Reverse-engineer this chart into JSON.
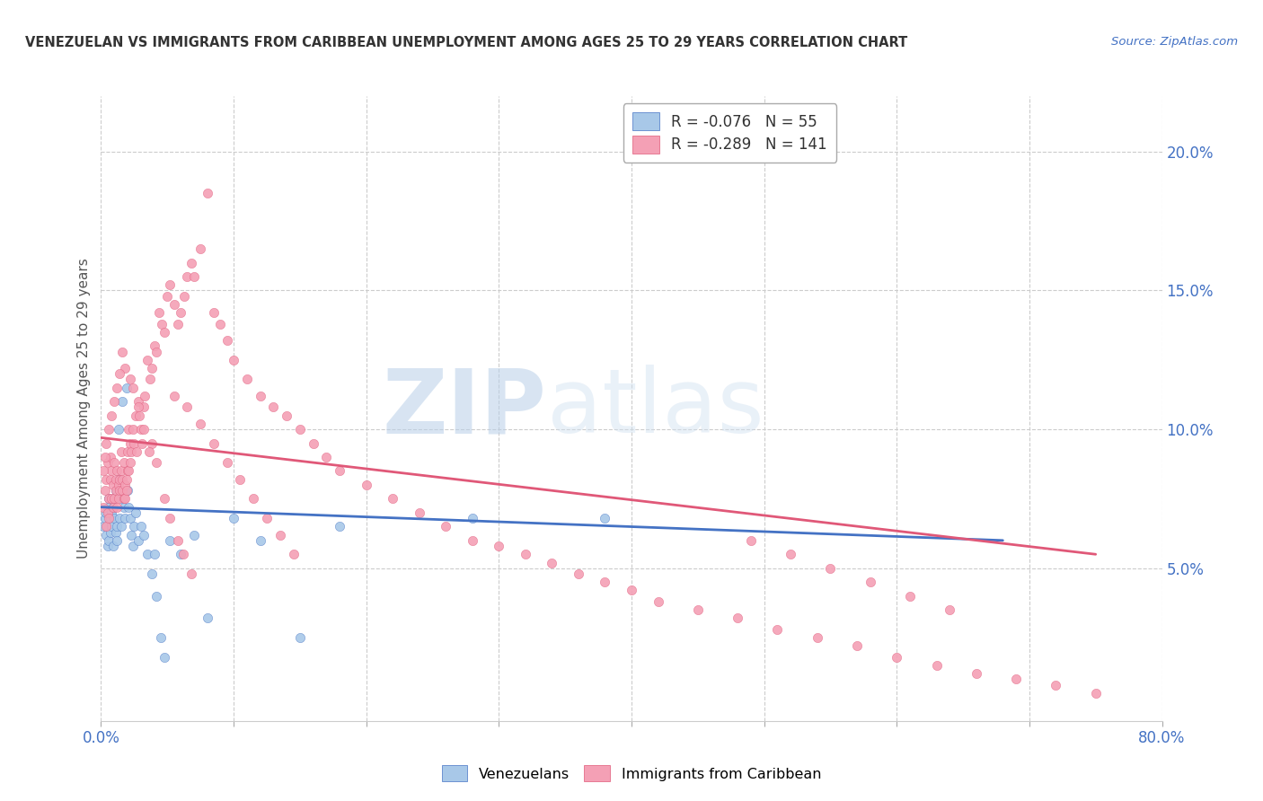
{
  "title": "VENEZUELAN VS IMMIGRANTS FROM CARIBBEAN UNEMPLOYMENT AMONG AGES 25 TO 29 YEARS CORRELATION CHART",
  "source": "Source: ZipAtlas.com",
  "ylabel": "Unemployment Among Ages 25 to 29 years",
  "ylabel_right_ticks": [
    "20.0%",
    "15.0%",
    "10.0%",
    "5.0%"
  ],
  "ylabel_right_vals": [
    0.2,
    0.15,
    0.1,
    0.05
  ],
  "venezuelan_color": "#a8c8e8",
  "caribbean_color": "#f4a0b5",
  "venezuelan_line_color": "#4472C4",
  "caribbean_line_color": "#e05878",
  "watermark_zip": "ZIP",
  "watermark_atlas": "atlas",
  "xmin": 0.0,
  "xmax": 0.8,
  "ymin": -0.005,
  "ymax": 0.22,
  "venezuelan_scatter_x": [
    0.002,
    0.003,
    0.004,
    0.004,
    0.005,
    0.005,
    0.006,
    0.006,
    0.007,
    0.007,
    0.008,
    0.008,
    0.009,
    0.009,
    0.01,
    0.01,
    0.011,
    0.011,
    0.012,
    0.012,
    0.013,
    0.013,
    0.014,
    0.015,
    0.015,
    0.016,
    0.017,
    0.018,
    0.019,
    0.02,
    0.021,
    0.022,
    0.023,
    0.024,
    0.025,
    0.026,
    0.028,
    0.03,
    0.032,
    0.035,
    0.038,
    0.04,
    0.042,
    0.045,
    0.048,
    0.052,
    0.06,
    0.07,
    0.08,
    0.1,
    0.12,
    0.15,
    0.18,
    0.28,
    0.38
  ],
  "venezuelan_scatter_y": [
    0.065,
    0.068,
    0.062,
    0.07,
    0.058,
    0.072,
    0.06,
    0.075,
    0.063,
    0.068,
    0.07,
    0.065,
    0.072,
    0.058,
    0.068,
    0.075,
    0.063,
    0.078,
    0.065,
    0.06,
    0.082,
    0.1,
    0.068,
    0.075,
    0.065,
    0.11,
    0.072,
    0.068,
    0.115,
    0.078,
    0.072,
    0.068,
    0.062,
    0.058,
    0.065,
    0.07,
    0.06,
    0.065,
    0.062,
    0.055,
    0.048,
    0.055,
    0.04,
    0.025,
    0.018,
    0.06,
    0.055,
    0.062,
    0.032,
    0.068,
    0.06,
    0.025,
    0.065,
    0.068,
    0.068
  ],
  "caribbean_scatter_x": [
    0.002,
    0.003,
    0.004,
    0.004,
    0.005,
    0.005,
    0.006,
    0.006,
    0.007,
    0.007,
    0.008,
    0.008,
    0.009,
    0.009,
    0.01,
    0.01,
    0.011,
    0.011,
    0.012,
    0.012,
    0.013,
    0.013,
    0.014,
    0.014,
    0.015,
    0.015,
    0.016,
    0.016,
    0.017,
    0.017,
    0.018,
    0.018,
    0.019,
    0.019,
    0.02,
    0.02,
    0.021,
    0.021,
    0.022,
    0.022,
    0.023,
    0.024,
    0.025,
    0.026,
    0.027,
    0.028,
    0.029,
    0.03,
    0.031,
    0.032,
    0.033,
    0.035,
    0.037,
    0.038,
    0.04,
    0.042,
    0.044,
    0.046,
    0.048,
    0.05,
    0.052,
    0.055,
    0.058,
    0.06,
    0.063,
    0.065,
    0.068,
    0.07,
    0.075,
    0.08,
    0.085,
    0.09,
    0.095,
    0.1,
    0.11,
    0.12,
    0.13,
    0.14,
    0.15,
    0.16,
    0.17,
    0.18,
    0.2,
    0.22,
    0.24,
    0.26,
    0.28,
    0.3,
    0.32,
    0.34,
    0.36,
    0.38,
    0.4,
    0.42,
    0.45,
    0.48,
    0.51,
    0.54,
    0.57,
    0.6,
    0.63,
    0.66,
    0.69,
    0.72,
    0.75,
    0.055,
    0.065,
    0.075,
    0.085,
    0.095,
    0.105,
    0.115,
    0.125,
    0.135,
    0.145,
    0.048,
    0.052,
    0.058,
    0.062,
    0.068,
    0.038,
    0.042,
    0.032,
    0.036,
    0.028,
    0.024,
    0.022,
    0.018,
    0.016,
    0.014,
    0.012,
    0.01,
    0.008,
    0.006,
    0.004,
    0.003,
    0.002,
    0.49,
    0.52,
    0.55,
    0.58,
    0.61,
    0.64
  ],
  "caribbean_scatter_y": [
    0.072,
    0.078,
    0.065,
    0.082,
    0.07,
    0.088,
    0.075,
    0.068,
    0.082,
    0.09,
    0.075,
    0.085,
    0.08,
    0.072,
    0.075,
    0.088,
    0.082,
    0.078,
    0.072,
    0.085,
    0.08,
    0.075,
    0.082,
    0.078,
    0.085,
    0.092,
    0.078,
    0.082,
    0.075,
    0.088,
    0.08,
    0.075,
    0.082,
    0.078,
    0.085,
    0.092,
    0.1,
    0.085,
    0.095,
    0.088,
    0.092,
    0.1,
    0.095,
    0.105,
    0.092,
    0.11,
    0.105,
    0.1,
    0.095,
    0.108,
    0.112,
    0.125,
    0.118,
    0.122,
    0.13,
    0.128,
    0.142,
    0.138,
    0.135,
    0.148,
    0.152,
    0.145,
    0.138,
    0.142,
    0.148,
    0.155,
    0.16,
    0.155,
    0.165,
    0.185,
    0.142,
    0.138,
    0.132,
    0.125,
    0.118,
    0.112,
    0.108,
    0.105,
    0.1,
    0.095,
    0.09,
    0.085,
    0.08,
    0.075,
    0.07,
    0.065,
    0.06,
    0.058,
    0.055,
    0.052,
    0.048,
    0.045,
    0.042,
    0.038,
    0.035,
    0.032,
    0.028,
    0.025,
    0.022,
    0.018,
    0.015,
    0.012,
    0.01,
    0.008,
    0.005,
    0.112,
    0.108,
    0.102,
    0.095,
    0.088,
    0.082,
    0.075,
    0.068,
    0.062,
    0.055,
    0.075,
    0.068,
    0.06,
    0.055,
    0.048,
    0.095,
    0.088,
    0.1,
    0.092,
    0.108,
    0.115,
    0.118,
    0.122,
    0.128,
    0.12,
    0.115,
    0.11,
    0.105,
    0.1,
    0.095,
    0.09,
    0.085,
    0.06,
    0.055,
    0.05,
    0.045,
    0.04,
    0.035
  ]
}
